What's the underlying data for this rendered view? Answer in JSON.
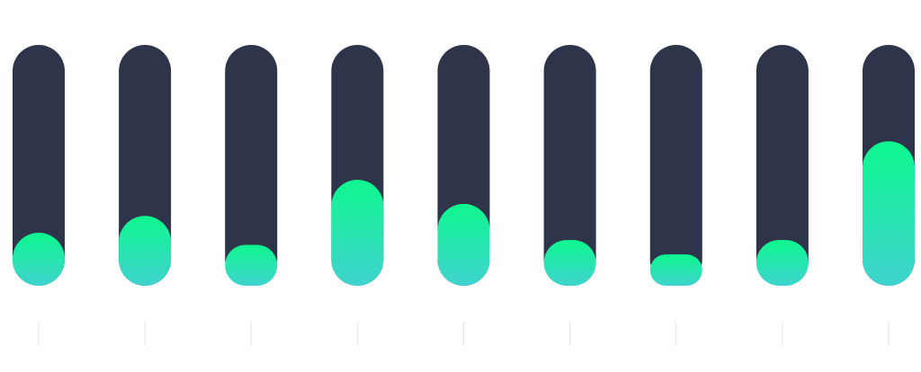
{
  "chart_data": {
    "type": "bar",
    "categories": [
      null,
      null,
      null,
      null,
      null,
      null,
      null,
      null,
      null
    ],
    "values": [
      22,
      29,
      17,
      44,
      34,
      19,
      13,
      19,
      60
    ],
    "track_color": "#2e3449",
    "color": [
      "#0ef78f",
      "#3fd3cf"
    ],
    "ylim": [
      0,
      100
    ]
  }
}
